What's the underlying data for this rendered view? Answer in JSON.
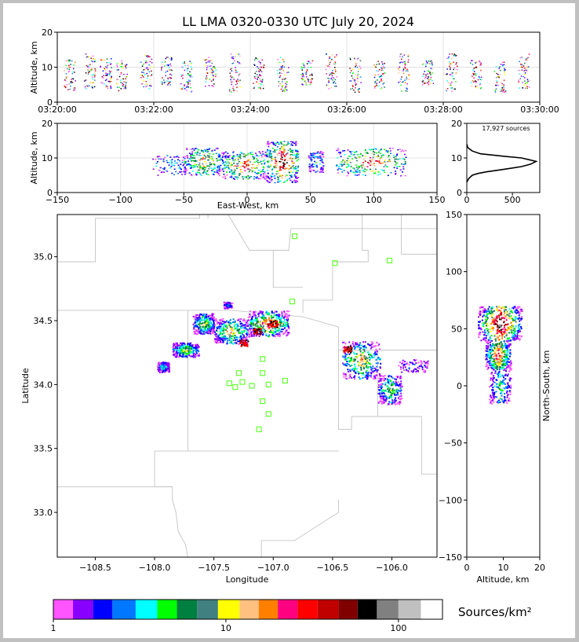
{
  "chart_data": [
    {
      "id": "time_panel",
      "type": "scatter",
      "title": "LL LMA 0320-0330 UTC July 20, 2024",
      "xlabel": "",
      "ylabel": "Altitude, km",
      "x_ticks": [
        "03:20:00",
        "03:22:00",
        "03:24:00",
        "03:26:00",
        "03:28:00",
        "03:30:00"
      ],
      "xlim": [
        "03:20:00",
        "03:30:00"
      ],
      "ylim": [
        0,
        20
      ],
      "y_ticks": [
        0,
        10,
        20
      ],
      "grid": true,
      "bursts": [
        {
          "t": "03:20:15",
          "z": [
            3,
            13
          ]
        },
        {
          "t": "03:20:40",
          "z": [
            4,
            14
          ]
        },
        {
          "t": "03:21:00",
          "z": [
            4,
            13
          ]
        },
        {
          "t": "03:21:20",
          "z": [
            3,
            12
          ]
        },
        {
          "t": "03:21:50",
          "z": [
            4,
            14
          ]
        },
        {
          "t": "03:22:15",
          "z": [
            5,
            13
          ]
        },
        {
          "t": "03:22:40",
          "z": [
            3,
            12
          ]
        },
        {
          "t": "03:23:10",
          "z": [
            4,
            13
          ]
        },
        {
          "t": "03:23:40",
          "z": [
            3,
            14
          ]
        },
        {
          "t": "03:24:10",
          "z": [
            4,
            13
          ]
        },
        {
          "t": "03:24:40",
          "z": [
            3,
            13
          ]
        },
        {
          "t": "03:25:10",
          "z": [
            5,
            12
          ]
        },
        {
          "t": "03:25:40",
          "z": [
            4,
            14
          ]
        },
        {
          "t": "03:26:10",
          "z": [
            3,
            13
          ]
        },
        {
          "t": "03:26:40",
          "z": [
            4,
            12
          ]
        },
        {
          "t": "03:27:10",
          "z": [
            3,
            14
          ]
        },
        {
          "t": "03:27:40",
          "z": [
            5,
            12
          ]
        },
        {
          "t": "03:28:10",
          "z": [
            3,
            14
          ]
        },
        {
          "t": "03:28:40",
          "z": [
            4,
            13
          ]
        },
        {
          "t": "03:29:10",
          "z": [
            3,
            12
          ]
        },
        {
          "t": "03:29:40",
          "z": [
            4,
            14
          ]
        }
      ]
    },
    {
      "id": "ew_panel",
      "type": "scatter",
      "xlabel": "East-West, km",
      "ylabel": "Altitude, km",
      "xlim": [
        -150,
        150
      ],
      "ylim": [
        0,
        20
      ],
      "x_ticks": [
        -150,
        -100,
        -50,
        0,
        50,
        100,
        150
      ],
      "y_ticks": [
        0,
        10,
        20
      ],
      "grid": true,
      "clusters": [
        {
          "x": [
            -75,
            -45
          ],
          "z": [
            5,
            11
          ],
          "density": 0.3
        },
        {
          "x": [
            -50,
            -20
          ],
          "z": [
            5,
            13
          ],
          "density": 0.7
        },
        {
          "x": [
            -20,
            15
          ],
          "z": [
            4,
            12
          ],
          "density": 0.8
        },
        {
          "x": [
            15,
            40
          ],
          "z": [
            3,
            15
          ],
          "density": 1.0
        },
        {
          "x": [
            48,
            60
          ],
          "z": [
            6,
            12
          ],
          "density": 0.3
        },
        {
          "x": [
            70,
            125
          ],
          "z": [
            5,
            13
          ],
          "density": 0.8
        }
      ]
    },
    {
      "id": "altitude_histogram",
      "type": "line",
      "annotation": "17,927 sources",
      "xlim": [
        0,
        800
      ],
      "ylim": [
        0,
        20
      ],
      "x_ticks": [
        0,
        500
      ],
      "y_ticks": [
        0,
        10,
        20
      ],
      "x": [
        0,
        20,
        60,
        120,
        220,
        350,
        480,
        600,
        700,
        760,
        680,
        600,
        400,
        150,
        60,
        10,
        0
      ],
      "y": [
        3,
        4,
        5,
        5.5,
        6,
        6.5,
        7,
        7.5,
        8.2,
        9,
        9.5,
        10,
        10.5,
        11.2,
        12,
        13,
        14
      ]
    },
    {
      "id": "plan_view",
      "type": "scatter",
      "xlabel": "Longitude",
      "ylabel": "Latitude",
      "xlim": [
        -108.82,
        -105.62
      ],
      "ylim": [
        32.65,
        35.33
      ],
      "x_ticks": [
        -108.5,
        -108.0,
        -107.5,
        -107.0,
        -106.5,
        -106.0
      ],
      "y_ticks": [
        33.0,
        33.5,
        34.0,
        34.5,
        35.0
      ],
      "x_tick_labels": [
        "−108.5",
        "−108.0",
        "−107.5",
        "−107.0",
        "−106.5",
        "−106.0"
      ],
      "y_tick_labels": [
        "33.0",
        "33.5",
        "34.0",
        "34.5",
        "35.0"
      ],
      "stations": [
        {
          "lon": -106.82,
          "lat": 35.16
        },
        {
          "lon": -106.48,
          "lat": 34.95
        },
        {
          "lon": -106.02,
          "lat": 34.97
        },
        {
          "lon": -106.84,
          "lat": 34.65
        },
        {
          "lon": -107.09,
          "lat": 34.2
        },
        {
          "lon": -107.29,
          "lat": 34.09
        },
        {
          "lon": -107.09,
          "lat": 34.09
        },
        {
          "lon": -107.37,
          "lat": 34.01
        },
        {
          "lon": -107.26,
          "lat": 34.02
        },
        {
          "lon": -107.32,
          "lat": 33.98
        },
        {
          "lon": -107.18,
          "lat": 33.99
        },
        {
          "lon": -107.04,
          "lat": 34.0
        },
        {
          "lon": -106.9,
          "lat": 34.03
        },
        {
          "lon": -107.09,
          "lat": 33.87
        },
        {
          "lon": -107.04,
          "lat": 33.77
        },
        {
          "lon": -107.12,
          "lat": 33.65
        }
      ],
      "clusters": [
        {
          "lon": [
            -107.98,
            -107.88
          ],
          "lat": [
            34.1,
            34.18
          ],
          "density": 0.4
        },
        {
          "lon": [
            -107.85,
            -107.63
          ],
          "lat": [
            34.22,
            34.33
          ],
          "density": 0.7
        },
        {
          "lon": [
            -107.68,
            -107.5
          ],
          "lat": [
            34.4,
            34.56
          ],
          "density": 0.7
        },
        {
          "lon": [
            -107.5,
            -107.22
          ],
          "lat": [
            34.32,
            34.52
          ],
          "density": 0.8
        },
        {
          "lon": [
            -107.42,
            -107.35
          ],
          "lat": [
            34.6,
            34.65
          ],
          "density": 0.3
        },
        {
          "lon": [
            -107.22,
            -106.87
          ],
          "lat": [
            34.38,
            34.58
          ],
          "density": 1.0
        },
        {
          "lon": [
            -106.42,
            -106.1
          ],
          "lat": [
            34.05,
            34.34
          ],
          "density": 0.8
        },
        {
          "lon": [
            -106.12,
            -105.92
          ],
          "lat": [
            33.85,
            34.08
          ],
          "density": 0.6
        },
        {
          "lon": [
            -105.95,
            -105.7
          ],
          "lat": [
            34.1,
            34.2
          ],
          "density": 0.2
        }
      ],
      "hot_spots": [
        {
          "lon": -107.0,
          "lat": 34.48
        },
        {
          "lon": -107.14,
          "lat": 34.42
        },
        {
          "lon": -107.25,
          "lat": 34.33
        },
        {
          "lon": -106.38,
          "lat": 34.28
        }
      ]
    },
    {
      "id": "ns_panel",
      "type": "scatter",
      "xlabel": "Altitude, km",
      "ylabel": "North-South, km",
      "xlim": [
        0,
        20
      ],
      "ylim": [
        -150,
        150
      ],
      "x_ticks": [
        0,
        10,
        20
      ],
      "y_ticks": [
        -150,
        -100,
        -50,
        0,
        50,
        100,
        150
      ],
      "y_tick_labels": [
        "−150",
        "−100",
        "−50",
        "0",
        "50",
        "100",
        "150"
      ],
      "clusters": [
        {
          "z": [
            3,
            15
          ],
          "ns": [
            40,
            70
          ],
          "density": 1.0
        },
        {
          "z": [
            5,
            12
          ],
          "ns": [
            15,
            40
          ],
          "density": 0.8
        },
        {
          "z": [
            6,
            12
          ],
          "ns": [
            -15,
            15
          ],
          "density": 0.4
        }
      ]
    },
    {
      "id": "colorbar",
      "type": "heatmap",
      "label": "Sources/km²",
      "scale": "log",
      "range": [
        1,
        180
      ],
      "tick_labels": [
        "1",
        "10",
        "100"
      ],
      "tick_values": [
        1,
        10,
        100
      ],
      "colors": [
        "#ff55ff",
        "#8800ff",
        "#0000ff",
        "#0077ff",
        "#00ffff",
        "#00ff00",
        "#008040",
        "#408080",
        "#ffff00",
        "#ffc080",
        "#ff8000",
        "#ff0080",
        "#ff0000",
        "#c00000",
        "#800000",
        "#000000",
        "#808080",
        "#c0c0c0",
        "#ffffff"
      ]
    }
  ]
}
